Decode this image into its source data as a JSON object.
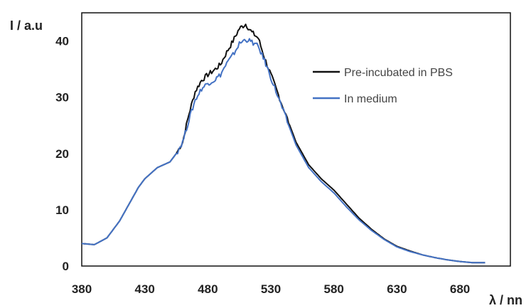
{
  "chart_data": {
    "type": "line",
    "title": "",
    "ylabel": "I / a.u",
    "xlabel": "λ / nn",
    "xlim": [
      380,
      720
    ],
    "ylim": [
      0,
      45
    ],
    "xticks": [
      380,
      430,
      480,
      530,
      580,
      630,
      680
    ],
    "yticks": [
      0,
      10,
      20,
      30,
      40
    ],
    "x_tick_labels": [
      "380",
      "430",
      "480",
      "530",
      "580",
      "630",
      "680"
    ],
    "y_tick_labels": [
      "0",
      "10",
      "20",
      "30",
      "40"
    ],
    "grid": false,
    "legend_position": "right",
    "series": [
      {
        "name": "Pre-incubated in PBS",
        "color": "#111111",
        "x": [
          380,
          390,
          400,
          410,
          420,
          425,
          430,
          440,
          450,
          455,
          460,
          465,
          470,
          475,
          480,
          485,
          490,
          495,
          500,
          505,
          510,
          515,
          520,
          525,
          530,
          540,
          550,
          560,
          570,
          580,
          590,
          600,
          610,
          620,
          630,
          640,
          650,
          660,
          670,
          680,
          690,
          700
        ],
        "y": [
          4,
          3.8,
          5,
          8,
          12,
          14,
          15.5,
          17.5,
          18.5,
          20,
          22,
          27,
          31,
          33,
          34,
          34.8,
          35.8,
          38,
          40,
          42.2,
          43,
          41.5,
          40.5,
          37,
          34,
          28,
          22,
          18,
          15.5,
          13.5,
          11,
          8.5,
          6.5,
          4.8,
          3.5,
          2.7,
          2,
          1.5,
          1.1,
          0.8,
          0.6,
          0.6
        ]
      },
      {
        "name": "In medium",
        "color": "#4472c4",
        "x": [
          380,
          390,
          400,
          410,
          420,
          425,
          430,
          440,
          450,
          455,
          460,
          465,
          470,
          475,
          480,
          485,
          490,
          495,
          500,
          505,
          510,
          515,
          520,
          525,
          530,
          540,
          550,
          560,
          570,
          580,
          590,
          600,
          610,
          620,
          630,
          640,
          650,
          660,
          670,
          680,
          690,
          700
        ],
        "y": [
          4,
          3.8,
          5,
          8,
          12,
          14,
          15.5,
          17.5,
          18.5,
          20,
          22,
          26,
          29.5,
          31.5,
          32.5,
          33,
          34,
          36,
          37.5,
          39.5,
          40.3,
          39.8,
          39,
          36.5,
          33.5,
          27.5,
          21.5,
          17.5,
          15,
          13,
          10.5,
          8.2,
          6.3,
          4.7,
          3.4,
          2.6,
          2,
          1.5,
          1.1,
          0.8,
          0.6,
          0.6
        ]
      }
    ]
  }
}
